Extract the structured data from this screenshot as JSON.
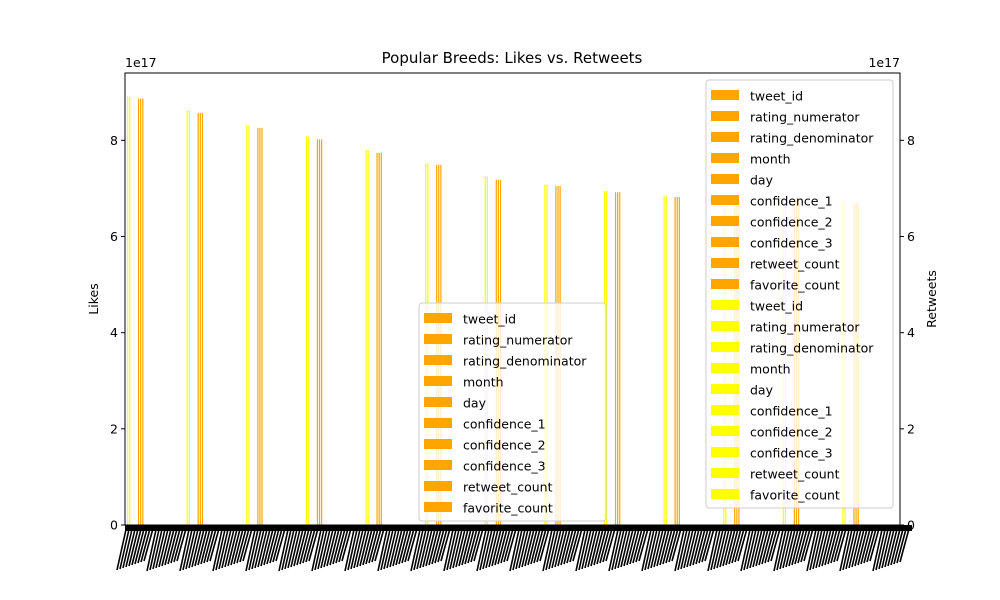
{
  "chart_data": {
    "type": "bar",
    "title": "Popular Breeds: Likes vs. Retweets",
    "ylabel_left": "Likes",
    "ylabel_right": "Retweets",
    "exponent_label_left": "1e17",
    "exponent_label_right": "1e17",
    "ylim": [
      0,
      9.4
    ],
    "yticks": [
      0,
      2,
      4,
      6,
      8
    ],
    "colors": {
      "left_series": "#FFA500",
      "right_series": "#FFFF00",
      "x_tick_text": "#000000"
    },
    "legend_left": {
      "placement": "lower-center",
      "entries": [
        "tweet_id",
        "rating_numerator",
        "rating_denominator",
        "month",
        "day",
        "confidence_1",
        "confidence_2",
        "confidence_3",
        "retweet_count",
        "favorite_count"
      ]
    },
    "legend_right": {
      "placement": "upper-right",
      "entries": [
        {
          "label": "tweet_id",
          "series": "left"
        },
        {
          "label": "rating_numerator",
          "series": "left"
        },
        {
          "label": "rating_denominator",
          "series": "left"
        },
        {
          "label": "month",
          "series": "left"
        },
        {
          "label": "day",
          "series": "left"
        },
        {
          "label": "confidence_1",
          "series": "left"
        },
        {
          "label": "confidence_2",
          "series": "left"
        },
        {
          "label": "confidence_3",
          "series": "left"
        },
        {
          "label": "retweet_count",
          "series": "left"
        },
        {
          "label": "favorite_count",
          "series": "left"
        },
        {
          "label": "tweet_id",
          "series": "right"
        },
        {
          "label": "rating_numerator",
          "series": "right"
        },
        {
          "label": "rating_denominator",
          "series": "right"
        },
        {
          "label": "month",
          "series": "right"
        },
        {
          "label": "day",
          "series": "right"
        },
        {
          "label": "confidence_1",
          "series": "right"
        },
        {
          "label": "confidence_2",
          "series": "right"
        },
        {
          "label": "confidence_3",
          "series": "right"
        },
        {
          "label": "retweet_count",
          "series": "right"
        },
        {
          "label": "favorite_count",
          "series": "right"
        }
      ]
    },
    "bar_groups": [
      {
        "right_series_value": 8.91,
        "left_series_value": 8.87
      },
      {
        "right_series_value": 8.62,
        "left_series_value": 8.57
      },
      {
        "right_series_value": 8.31,
        "left_series_value": 8.26
      },
      {
        "right_series_value": 8.08,
        "left_series_value": 8.02
      },
      {
        "right_series_value": 7.8,
        "left_series_value": 7.74
      },
      {
        "right_series_value": 7.52,
        "left_series_value": 7.49
      },
      {
        "right_series_value": 7.24,
        "left_series_value": 7.18
      },
      {
        "right_series_value": 7.08,
        "left_series_value": 7.05
      },
      {
        "right_series_value": 6.94,
        "left_series_value": 6.92
      },
      {
        "right_series_value": 6.85,
        "left_series_value": 6.82
      },
      {
        "right_series_value": 6.8,
        "left_series_value": 6.78
      },
      {
        "right_series_value": 6.76,
        "left_series_value": 6.74
      },
      {
        "right_series_value": 6.72,
        "left_series_value": 6.7
      }
    ]
  }
}
